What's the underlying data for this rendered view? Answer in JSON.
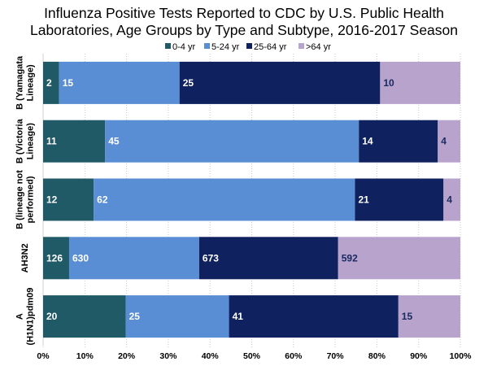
{
  "chart_data": {
    "type": "bar",
    "orientation": "horizontal",
    "stacked": "percent",
    "title": [
      "Influenza Positive Tests Reported to CDC by U.S. Public Health",
      "Laboratories, Age Groups by Type and Subtype, 2016-2017 Season"
    ],
    "xlabel": "",
    "ylabel": "",
    "xlim": [
      0,
      100
    ],
    "x_ticks": [
      "0%",
      "10%",
      "20%",
      "30%",
      "40%",
      "50%",
      "60%",
      "70%",
      "80%",
      "90%",
      "100%"
    ],
    "grid": "vertical dotted",
    "legend_position": "top",
    "categories": [
      [
        "B (Yamagata",
        "Lineage)"
      ],
      [
        "B (Victoria",
        "Lineage)"
      ],
      [
        "B (lineage not",
        "performed)"
      ],
      [
        "AH3N2"
      ],
      [
        "A",
        "(H1N1)pdm09"
      ]
    ],
    "series": [
      {
        "name": "0-4 yr",
        "color": "#215a67",
        "label_color": "#ffffff",
        "values": [
          2,
          11,
          12,
          126,
          20
        ]
      },
      {
        "name": "5-24 yr",
        "color": "#5a8ed4",
        "label_color": "#ffffff",
        "values": [
          15,
          45,
          62,
          630,
          25
        ]
      },
      {
        "name": "25-64 yr",
        "color": "#0f215f",
        "label_color": "#ffffff",
        "values": [
          25,
          14,
          21,
          673,
          41
        ]
      },
      {
        "name": ">64 yr",
        "color": "#b7a3cc",
        "label_color": "#1a2a60",
        "values": [
          10,
          4,
          4,
          592,
          15
        ]
      }
    ]
  }
}
